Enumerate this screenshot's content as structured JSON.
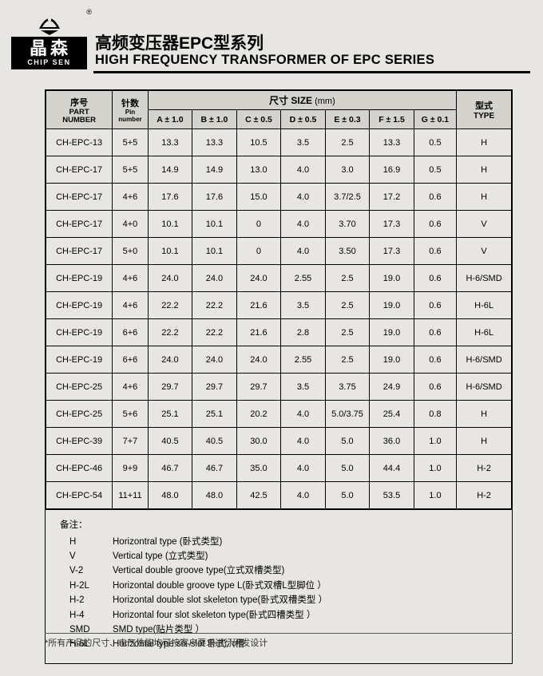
{
  "logo": {
    "cn": "晶森",
    "en": "CHIP SEN",
    "reg": "®"
  },
  "title": {
    "cn": "高频变压器EPC型系列",
    "en": "HIGH FREQUENCY TRANSFORMER OF EPC SERIES"
  },
  "headers": {
    "part": {
      "cn": "序号",
      "en1": "PART",
      "en2": "NUMBER"
    },
    "pin": {
      "cn": "针数",
      "en1": "Pin",
      "en2": "number"
    },
    "size": {
      "cn": "尺寸 SIZE",
      "unit": "(mm)"
    },
    "type": {
      "cn": "型式",
      "en": "TYPE"
    },
    "dims": [
      "A ± 1.0",
      "B ± 1.0",
      "C ± 0.5",
      "D ± 0.5",
      "E ± 0.3",
      "F ± 1.5",
      "G ± 0.1"
    ]
  },
  "rows": [
    {
      "p": "CH-EPC-13",
      "pin": "5+5",
      "a": "13.3",
      "b": "13.3",
      "c": "10.5",
      "d": "3.5",
      "e": "2.5",
      "f": "13.3",
      "g": "0.5",
      "t": "H"
    },
    {
      "p": "CH-EPC-17",
      "pin": "5+5",
      "a": "14.9",
      "b": "14.9",
      "c": "13.0",
      "d": "4.0",
      "e": "3.0",
      "f": "16.9",
      "g": "0.5",
      "t": "H"
    },
    {
      "p": "CH-EPC-17",
      "pin": "4+6",
      "a": "17.6",
      "b": "17.6",
      "c": "15.0",
      "d": "4.0",
      "e": "3.7/2.5",
      "f": "17.2",
      "g": "0.6",
      "t": "H"
    },
    {
      "p": "CH-EPC-17",
      "pin": "4+0",
      "a": "10.1",
      "b": "10.1",
      "c": "0",
      "d": "4.0",
      "e": "3.70",
      "f": "17.3",
      "g": "0.6",
      "t": "V"
    },
    {
      "p": "CH-EPC-17",
      "pin": "5+0",
      "a": "10.1",
      "b": "10.1",
      "c": "0",
      "d": "4.0",
      "e": "3.50",
      "f": "17.3",
      "g": "0.6",
      "t": "V"
    },
    {
      "p": "CH-EPC-19",
      "pin": "4+6",
      "a": "24.0",
      "b": "24.0",
      "c": "24.0",
      "d": "2.55",
      "e": "2.5",
      "f": "19.0",
      "g": "0.6",
      "t": "H-6/SMD"
    },
    {
      "p": "CH-EPC-19",
      "pin": "4+6",
      "a": "22.2",
      "b": "22.2",
      "c": "21.6",
      "d": "3.5",
      "e": "2.5",
      "f": "19.0",
      "g": "0.6",
      "t": "H-6L"
    },
    {
      "p": "CH-EPC-19",
      "pin": "6+6",
      "a": "22.2",
      "b": "22.2",
      "c": "21.6",
      "d": "2.8",
      "e": "2.5",
      "f": "19.0",
      "g": "0.6",
      "t": "H-6L"
    },
    {
      "p": "CH-EPC-19",
      "pin": "6+6",
      "a": "24.0",
      "b": "24.0",
      "c": "24.0",
      "d": "2.55",
      "e": "2.5",
      "f": "19.0",
      "g": "0.6",
      "t": "H-6/SMD"
    },
    {
      "p": "CH-EPC-25",
      "pin": "4+6",
      "a": "29.7",
      "b": "29.7",
      "c": "29.7",
      "d": "3.5",
      "e": "3.75",
      "f": "24.9",
      "g": "0.6",
      "t": "H-6/SMD"
    },
    {
      "p": "CH-EPC-25",
      "pin": "5+6",
      "a": "25.1",
      "b": "25.1",
      "c": "20.2",
      "d": "4.0",
      "e": "5.0/3.75",
      "f": "25.4",
      "g": "0.8",
      "t": "H"
    },
    {
      "p": "CH-EPC-39",
      "pin": "7+7",
      "a": "40.5",
      "b": "40.5",
      "c": "30.0",
      "d": "4.0",
      "e": "5.0",
      "f": "36.0",
      "g": "1.0",
      "t": "H"
    },
    {
      "p": "CH-EPC-46",
      "pin": "9+9",
      "a": "46.7",
      "b": "46.7",
      "c": "35.0",
      "d": "4.0",
      "e": "5.0",
      "f": "44.4",
      "g": "1.0",
      "t": "H-2"
    },
    {
      "p": "CH-EPC-54",
      "pin": "11+11",
      "a": "48.0",
      "b": "48.0",
      "c": "42.5",
      "d": "4.0",
      "e": "5.0",
      "f": "53.5",
      "g": "1.0",
      "t": "H-2"
    }
  ],
  "notes": {
    "title": "备注：",
    "items": [
      {
        "code": "H",
        "desc": "Horizontral type  (卧式类型)"
      },
      {
        "code": "V",
        "desc": "Vertical type  (立式类型)"
      },
      {
        "code": "V-2",
        "desc": "Vertical double groove type(立式双槽类型)"
      },
      {
        "code": "H-2L",
        "desc": "Horizontal double groove type L(卧式双槽L型脚位 ）"
      },
      {
        "code": "H-2",
        "desc": "Horizontal double slot skeleton type(卧式双槽类型 ）"
      },
      {
        "code": "H-4",
        "desc": "Horizontal  four  slot skeleton type(卧式四槽类型 ）"
      },
      {
        "code": "SMD",
        "desc": "SMD type(贴片类型 ）"
      },
      {
        "code": "H-6L",
        "desc": "Horizontal type six-slot 卧式六槽"
      }
    ]
  },
  "footer": "*所有产品的尺寸、电气性能均可按客户要求进行研发设计"
}
